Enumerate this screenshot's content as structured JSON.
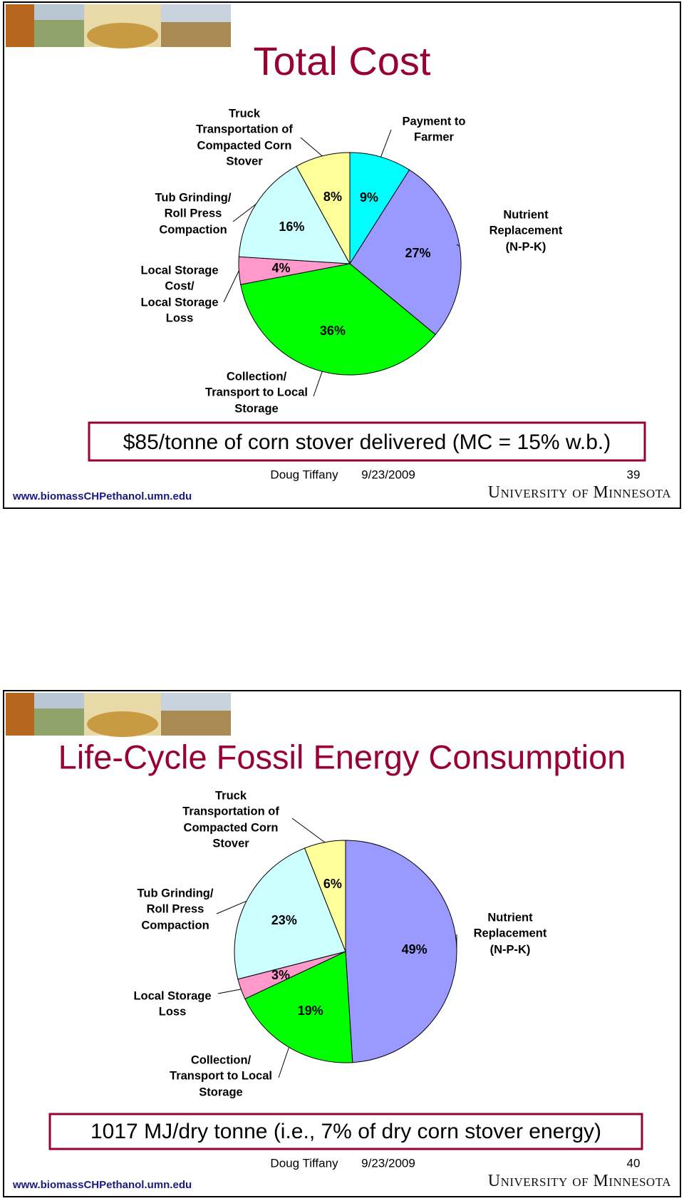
{
  "chart_data": [
    {
      "type": "pie",
      "title": "Total Cost",
      "categories": [
        "Payment to\nFarmer",
        "Nutrient\nReplacement\n(N-P-K)",
        "Collection/\nTransport to Local\nStorage",
        "Local Storage\nCost/\nLocal Storage\nLoss",
        "Tub Grinding/\nRoll Press\nCompaction",
        "Truck\nTransportation of\nCompacted Corn\nStover"
      ],
      "values": [
        9,
        27,
        36,
        4,
        16,
        8
      ],
      "value_labels": [
        "9%",
        "27%",
        "36%",
        "4%",
        "16%",
        "8%"
      ],
      "colors": [
        "#00ffff",
        "#9999ff",
        "#00ff00",
        "#ff99cc",
        "#ccffff",
        "#ffff99"
      ],
      "note": "$85/tonne of corn stover delivered (MC = 15% w.b.)",
      "author": "Doug Tiffany",
      "date": "9/23/2009",
      "page": "39",
      "url": "www.biomassCHPethanol.umn.edu",
      "organization": "University of Minnesota"
    },
    {
      "type": "pie",
      "title": "Life-Cycle Fossil Energy Consumption",
      "categories": [
        "Nutrient\nReplacement\n(N-P-K)",
        "Collection/\nTransport to Local\nStorage",
        "Local Storage\nLoss",
        "Tub Grinding/\nRoll Press\nCompaction",
        "Truck\nTransportation of\nCompacted Corn\nStover"
      ],
      "values": [
        49,
        19,
        3,
        23,
        6
      ],
      "value_labels": [
        "49%",
        "19%",
        "3%",
        "23%",
        "6%"
      ],
      "colors": [
        "#9999ff",
        "#00ff00",
        "#ff99cc",
        "#ccffff",
        "#ffff99"
      ],
      "note": "1017 MJ/dry tonne (i.e., 7% of dry corn stover energy)",
      "author": "Doug Tiffany",
      "date": "9/23/2009",
      "page": "40",
      "url": "www.biomassCHPethanol.umn.edu",
      "organization": "University of Minnesota"
    }
  ]
}
